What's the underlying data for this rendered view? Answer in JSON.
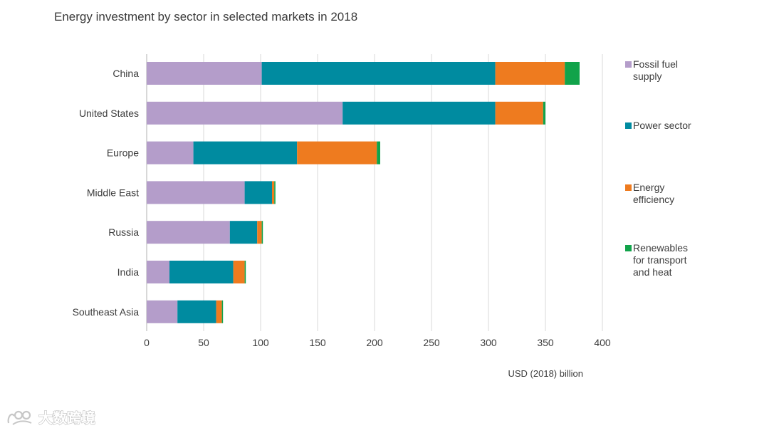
{
  "chart_data": {
    "type": "bar",
    "orientation": "horizontal",
    "stacked": true,
    "title": "Energy investment by sector in selected markets in 2018",
    "xlabel": "USD (2018) billion",
    "ylabel": "",
    "xlim": [
      0,
      400
    ],
    "xticks": [
      0,
      50,
      100,
      150,
      200,
      250,
      300,
      350,
      400
    ],
    "grid": "vertical",
    "legend_position": "right",
    "categories": [
      "China",
      "United States",
      "Europe",
      "Middle East",
      "Russia",
      "India",
      "Southeast Asia"
    ],
    "series": [
      {
        "name": "Fossil fuel supply",
        "legend_lines": [
          "Fossil fuel",
          "supply"
        ],
        "color": "#b49dca",
        "values": [
          101,
          172,
          41,
          86,
          73,
          20,
          27
        ]
      },
      {
        "name": "Power sector",
        "legend_lines": [
          "Power sector"
        ],
        "color": "#008ba0",
        "values": [
          205,
          134,
          91,
          24,
          24,
          56,
          34
        ]
      },
      {
        "name": "Energy efficiency",
        "legend_lines": [
          "Energy",
          "efficiency"
        ],
        "color": "#ee7b1f",
        "values": [
          61,
          42,
          70,
          2,
          4,
          10,
          5
        ]
      },
      {
        "name": "Renewables for transport and heat",
        "legend_lines": [
          "Renewables",
          "for transport",
          "and heat"
        ],
        "color": "#11a34a",
        "values": [
          13,
          2,
          3,
          1,
          1,
          1,
          1
        ]
      }
    ]
  },
  "colors": {
    "grid": "#d9d9d9",
    "axis": "#bfbfbf"
  },
  "watermark": {
    "text": "大数跨境"
  }
}
